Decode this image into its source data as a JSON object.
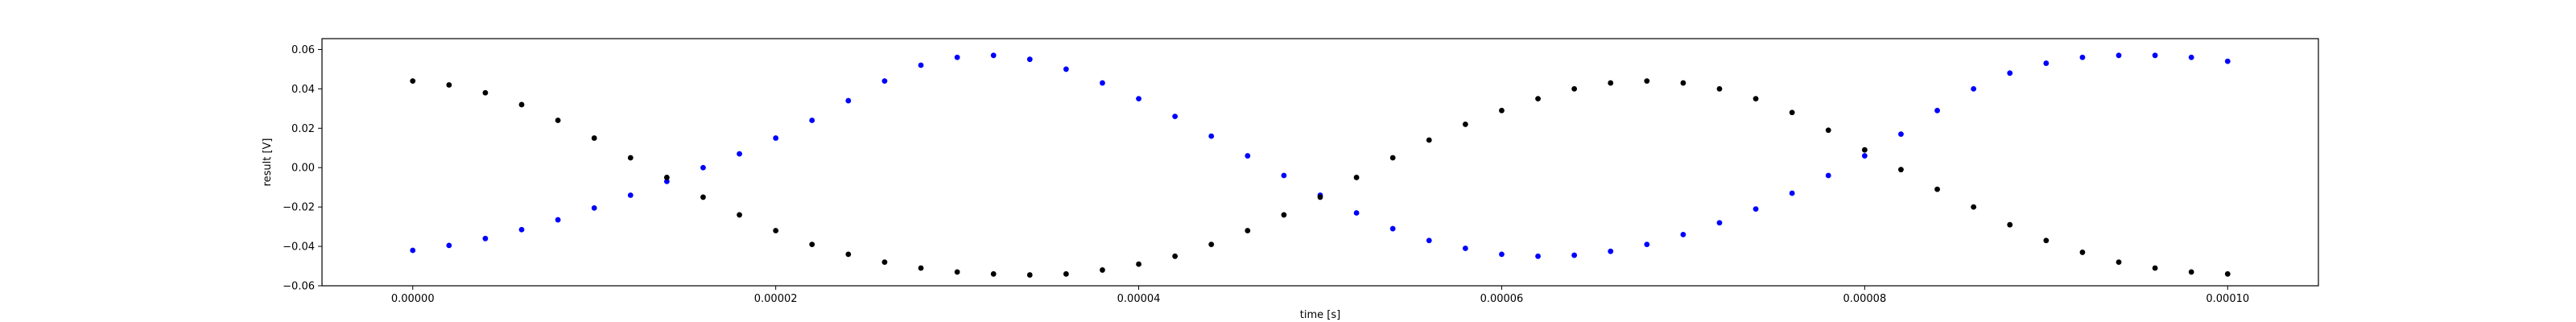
{
  "chart_data": {
    "type": "scatter",
    "title": "",
    "xlabel": "time [s]",
    "ylabel": "result [V]",
    "xlim": [
      -5e-06,
      0.000105
    ],
    "ylim": [
      -0.06,
      0.0655
    ],
    "xticks": [
      0,
      2e-05,
      4e-05,
      6e-05,
      8e-05,
      0.0001
    ],
    "xtick_labels": [
      "0.00000",
      "0.00002",
      "0.00004",
      "0.00006",
      "0.00008",
      "0.00010"
    ],
    "yticks": [
      -0.06,
      -0.04,
      -0.02,
      0.0,
      0.02,
      0.04,
      0.06
    ],
    "ytick_labels": [
      "−0.06",
      "−0.04",
      "−0.02",
      "0.00",
      "0.02",
      "0.04",
      "0.06"
    ],
    "grid": false,
    "series": [
      {
        "color": "#0000ff",
        "marker": "dot",
        "points": [
          [
            0.0,
            -0.042
          ],
          [
            2e-06,
            -0.0395
          ],
          [
            4e-06,
            -0.036
          ],
          [
            6e-06,
            -0.0315
          ],
          [
            8e-06,
            -0.0265
          ],
          [
            1e-05,
            -0.0205
          ],
          [
            1.2e-05,
            -0.014
          ],
          [
            1.4e-05,
            -0.007
          ],
          [
            1.6e-05,
            0.0
          ],
          [
            1.8e-05,
            0.007
          ],
          [
            2e-05,
            0.015
          ],
          [
            2.2e-05,
            0.024
          ],
          [
            2.4e-05,
            0.034
          ],
          [
            2.6e-05,
            0.044
          ],
          [
            2.8e-05,
            0.052
          ],
          [
            3e-05,
            0.056
          ],
          [
            3.2e-05,
            0.057
          ],
          [
            3.4e-05,
            0.055
          ],
          [
            3.6e-05,
            0.05
          ],
          [
            3.8e-05,
            0.043
          ],
          [
            4e-05,
            0.035
          ],
          [
            4.2e-05,
            0.026
          ],
          [
            4.4e-05,
            0.016
          ],
          [
            4.6e-05,
            0.006
          ],
          [
            4.8e-05,
            -0.004
          ],
          [
            5e-05,
            -0.014
          ],
          [
            5.2e-05,
            -0.023
          ],
          [
            5.4e-05,
            -0.031
          ],
          [
            5.6e-05,
            -0.037
          ],
          [
            5.8e-05,
            -0.041
          ],
          [
            6e-05,
            -0.044
          ],
          [
            6.2e-05,
            -0.045
          ],
          [
            6.4e-05,
            -0.0445
          ],
          [
            6.6e-05,
            -0.0425
          ],
          [
            6.8e-05,
            -0.039
          ],
          [
            7e-05,
            -0.034
          ],
          [
            7.2e-05,
            -0.028
          ],
          [
            7.4e-05,
            -0.021
          ],
          [
            7.6e-05,
            -0.013
          ],
          [
            7.8e-05,
            -0.004
          ],
          [
            8e-05,
            0.006
          ],
          [
            8.2e-05,
            0.017
          ],
          [
            8.4e-05,
            0.029
          ],
          [
            8.6e-05,
            0.04
          ],
          [
            8.8e-05,
            0.048
          ],
          [
            9e-05,
            0.053
          ],
          [
            9.2e-05,
            0.056
          ],
          [
            9.4e-05,
            0.057
          ],
          [
            9.6e-05,
            0.057
          ],
          [
            9.8e-05,
            0.056
          ],
          [
            0.0001,
            0.054
          ]
        ]
      },
      {
        "color": "#000000",
        "marker": "dot",
        "points": [
          [
            0.0,
            0.044
          ],
          [
            2e-06,
            0.042
          ],
          [
            4e-06,
            0.038
          ],
          [
            6e-06,
            0.032
          ],
          [
            8e-06,
            0.024
          ],
          [
            1e-05,
            0.015
          ],
          [
            1.2e-05,
            0.005
          ],
          [
            1.4e-05,
            -0.005
          ],
          [
            1.6e-05,
            -0.015
          ],
          [
            1.8e-05,
            -0.024
          ],
          [
            2e-05,
            -0.032
          ],
          [
            2.2e-05,
            -0.039
          ],
          [
            2.4e-05,
            -0.044
          ],
          [
            2.6e-05,
            -0.048
          ],
          [
            2.8e-05,
            -0.051
          ],
          [
            3e-05,
            -0.053
          ],
          [
            3.2e-05,
            -0.054
          ],
          [
            3.4e-05,
            -0.0545
          ],
          [
            3.6e-05,
            -0.054
          ],
          [
            3.8e-05,
            -0.052
          ],
          [
            4e-05,
            -0.049
          ],
          [
            4.2e-05,
            -0.045
          ],
          [
            4.4e-05,
            -0.039
          ],
          [
            4.6e-05,
            -0.032
          ],
          [
            4.8e-05,
            -0.024
          ],
          [
            5e-05,
            -0.015
          ],
          [
            5.2e-05,
            -0.005
          ],
          [
            5.4e-05,
            0.005
          ],
          [
            5.6e-05,
            0.014
          ],
          [
            5.8e-05,
            0.022
          ],
          [
            6e-05,
            0.029
          ],
          [
            6.2e-05,
            0.035
          ],
          [
            6.4e-05,
            0.04
          ],
          [
            6.6e-05,
            0.043
          ],
          [
            6.8e-05,
            0.044
          ],
          [
            7e-05,
            0.043
          ],
          [
            7.2e-05,
            0.04
          ],
          [
            7.4e-05,
            0.035
          ],
          [
            7.6e-05,
            0.028
          ],
          [
            7.8e-05,
            0.019
          ],
          [
            8e-05,
            0.009
          ],
          [
            8.2e-05,
            -0.001
          ],
          [
            8.4e-05,
            -0.011
          ],
          [
            8.6e-05,
            -0.02
          ],
          [
            8.8e-05,
            -0.029
          ],
          [
            9e-05,
            -0.037
          ],
          [
            9.2e-05,
            -0.043
          ],
          [
            9.4e-05,
            -0.048
          ],
          [
            9.6e-05,
            -0.051
          ],
          [
            9.8e-05,
            -0.053
          ],
          [
            0.0001,
            -0.054
          ]
        ]
      }
    ]
  }
}
